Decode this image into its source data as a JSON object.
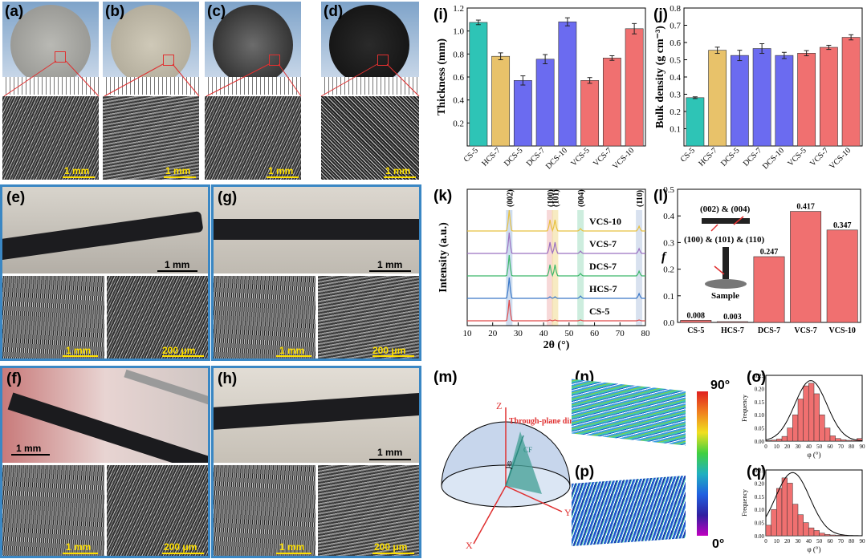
{
  "panel_labels": {
    "a": "(a)",
    "b": "(b)",
    "c": "(c)",
    "d": "(d)",
    "e": "(e)",
    "f": "(f)",
    "g": "(g)",
    "h": "(h)",
    "i": "(i)",
    "j": "(j)",
    "k": "(k)",
    "l": "(l)",
    "m": "(m)",
    "n": "(n)",
    "o": "(o)",
    "p": "(p)",
    "q": "(q)"
  },
  "scale_labels": {
    "a": "1 mm",
    "b": "1 mm",
    "c": "1 mm",
    "d": "1 mm",
    "e_top": "1 mm",
    "e_left": "1 mm",
    "e_right": "200 μm",
    "g_top": "1 mm",
    "g_left": "1 mm",
    "g_right": "200 μm",
    "f_top": "1 mm",
    "f_left": "1 mm",
    "f_right": "200 μm",
    "h_top": "1 mm",
    "h_left": "1 mm",
    "h_right": "200 μm"
  },
  "colors": {
    "teal": "#2ec4b6",
    "gold": "#e8c26a",
    "blue": "#6b6bf0",
    "red": "#f07070",
    "frame": "#3a87c4",
    "scale": "#ffe000"
  },
  "chart_data": [
    {
      "id": "i",
      "type": "bar",
      "categories": [
        "CS-5",
        "HCS-7",
        "DCS-5",
        "DCS-7",
        "DCS-10",
        "VCS-5",
        "VCS-7",
        "VCS-10"
      ],
      "values": [
        1.075,
        0.78,
        0.57,
        0.755,
        1.08,
        0.57,
        0.765,
        1.02
      ],
      "errors": [
        0.02,
        0.03,
        0.04,
        0.04,
        0.035,
        0.025,
        0.02,
        0.045
      ],
      "bar_colors": [
        "#2ec4b6",
        "#e8c26a",
        "#6b6bf0",
        "#6b6bf0",
        "#6b6bf0",
        "#f07070",
        "#f07070",
        "#f07070"
      ],
      "ylabel": "Thickness (mm)",
      "ylim": [
        0,
        1.2
      ],
      "yticks": [
        "0.2",
        "0.4",
        "0.6",
        "0.8",
        "1.0",
        "1.2"
      ]
    },
    {
      "id": "j",
      "type": "bar",
      "categories": [
        "CS-5",
        "HCS-7",
        "DCS-5",
        "DCS-7",
        "DCS-10",
        "VCS-5",
        "VCS-7",
        "VCS-10"
      ],
      "values": [
        0.28,
        0.555,
        0.525,
        0.565,
        0.525,
        0.538,
        0.572,
        0.63
      ],
      "errors": [
        0.005,
        0.018,
        0.03,
        0.028,
        0.018,
        0.015,
        0.012,
        0.015
      ],
      "bar_colors": [
        "#2ec4b6",
        "#e8c26a",
        "#6b6bf0",
        "#6b6bf0",
        "#6b6bf0",
        "#f07070",
        "#f07070",
        "#f07070"
      ],
      "ylabel": "Bulk density (g cm⁻³)",
      "ylim": [
        0,
        0.8
      ],
      "yticks": [
        "0.1",
        "0.2",
        "0.3",
        "0.4",
        "0.5",
        "0.6",
        "0.7",
        "0.8"
      ]
    },
    {
      "id": "k",
      "type": "line",
      "xlabel": "2θ (°)",
      "ylabel": "Intensity (a.u.)",
      "xlim": [
        10,
        80
      ],
      "xticks": [
        "10",
        "20",
        "30",
        "40",
        "50",
        "60",
        "70",
        "80"
      ],
      "series": [
        {
          "name": "VCS-10",
          "color": "#e8c040"
        },
        {
          "name": "VCS-7",
          "color": "#9b70c0"
        },
        {
          "name": "DCS-7",
          "color": "#3cb86a"
        },
        {
          "name": "HCS-7",
          "color": "#3a78c8"
        },
        {
          "name": "CS-5",
          "color": "#e04a4a"
        }
      ],
      "peaks": [
        {
          "label": "(002)",
          "x": 26.5
        },
        {
          "label": "(100)",
          "x": 42.5
        },
        {
          "label": "(101)",
          "x": 44.5
        },
        {
          "label": "(004)",
          "x": 54.5
        },
        {
          "label": "(110)",
          "x": 77.5
        }
      ]
    },
    {
      "id": "l",
      "type": "bar",
      "categories": [
        "CS-5",
        "HCS-7",
        "DCS-7",
        "VCS-7",
        "VCS-10"
      ],
      "values": [
        0.008,
        0.003,
        0.247,
        0.417,
        0.347
      ],
      "value_labels": [
        "0.008",
        "0.003",
        "0.247",
        "0.417",
        "0.347"
      ],
      "ylabel": "f",
      "ylim": [
        0,
        0.5
      ],
      "yticks": [
        "0.0",
        "0.1",
        "0.2",
        "0.3",
        "0.4",
        "0.5"
      ],
      "inset": {
        "label1": "(002) & (004)",
        "label2": "(100) & (101) & (110)",
        "sample": "Sample"
      }
    },
    {
      "id": "o",
      "type": "bar",
      "ylabel": "Frequency",
      "xlabel": "φ (°)",
      "xlim": [
        0,
        90
      ],
      "ylim": [
        0,
        0.25
      ],
      "xticks": [
        "0",
        "10",
        "20",
        "30",
        "40",
        "50",
        "60",
        "70",
        "80",
        "90"
      ],
      "yticks": [
        "0.00",
        "0.05",
        "0.10",
        "0.15",
        "0.20",
        "0.25"
      ],
      "bins_start": 0,
      "bin_width": 5,
      "values": [
        0.002,
        0.004,
        0.008,
        0.018,
        0.05,
        0.1,
        0.16,
        0.21,
        0.22,
        0.18,
        0.1,
        0.05,
        0.02,
        0.01,
        0.005,
        0.003,
        0.003,
        0.01
      ],
      "fit_mean": 42,
      "fit_sd": 15,
      "fit_peak": 0.23
    },
    {
      "id": "q",
      "type": "bar",
      "ylabel": "Frequency",
      "xlabel": "φ (°)",
      "xlim": [
        0,
        90
      ],
      "ylim": [
        0,
        0.25
      ],
      "xticks": [
        "0",
        "10",
        "20",
        "30",
        "40",
        "50",
        "60",
        "70",
        "80",
        "90"
      ],
      "yticks": [
        "0.00",
        "0.05",
        "0.10",
        "0.15",
        "0.20",
        "0.25"
      ],
      "bins_start": 0,
      "bin_width": 5,
      "values": [
        0.04,
        0.1,
        0.18,
        0.22,
        0.2,
        0.12,
        0.08,
        0.05,
        0.03,
        0.02,
        0.01,
        0.005,
        0.003,
        0.002,
        0.002,
        0.001,
        0.001,
        0.001
      ],
      "fit_mean": 25,
      "fit_sd": 16,
      "fit_peak": 0.24
    }
  ],
  "colorbar": {
    "max": "90°",
    "min": "0°"
  },
  "schematic": {
    "z": "Z",
    "x": "X",
    "y": "Y",
    "phi": "φ",
    "cf": "CF",
    "direction": "Through-plane direction"
  }
}
